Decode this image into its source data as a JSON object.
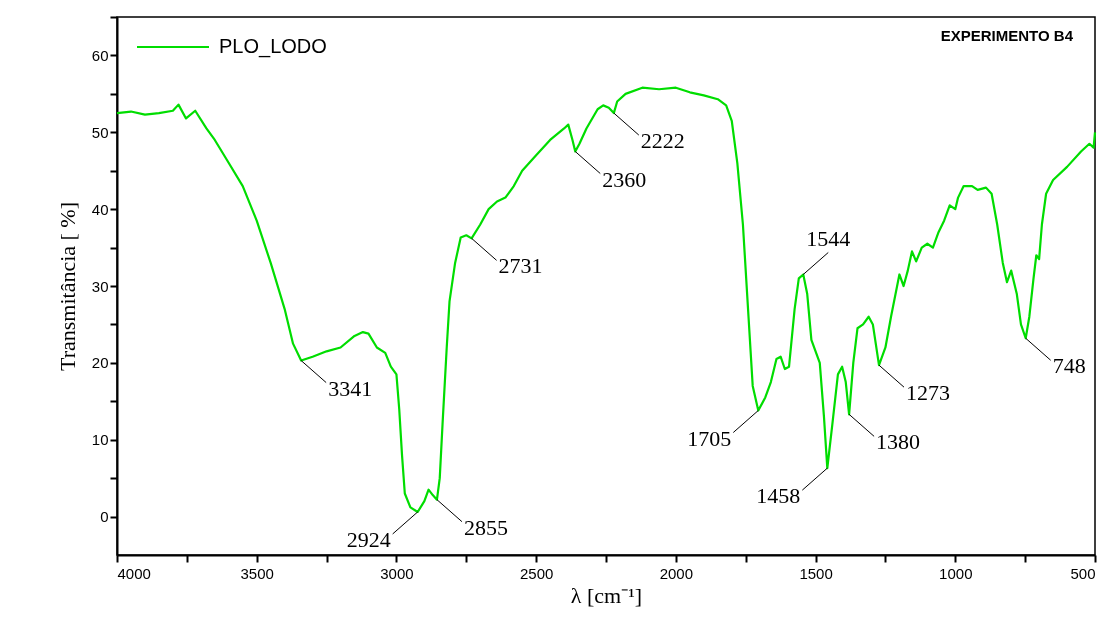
{
  "chart_data": {
    "type": "line",
    "title": "EXPERIMENTO B4",
    "xlabel": "λ [cm⁻¹]",
    "ylabel": "Transmitância [ %]",
    "xlim": [
      4000,
      500
    ],
    "ylim": [
      -5,
      65
    ],
    "xticks": [
      4000,
      {
        "value": 3750,
        "label": null
      },
      3500,
      {
        "value": 3250,
        "label": null
      },
      3000,
      {
        "value": 2750,
        "label": null
      },
      2500,
      {
        "value": 2250,
        "label": null
      },
      2000,
      {
        "value": 1750,
        "label": null
      },
      1500,
      {
        "value": 1250,
        "label": null
      },
      1000,
      {
        "value": 750,
        "label": null
      },
      500
    ],
    "yticks": [
      0,
      {
        "value": 5,
        "label": null
      },
      10,
      {
        "value": 15,
        "label": null
      },
      20,
      {
        "value": 25,
        "label": null
      },
      30,
      {
        "value": 35,
        "label": null
      },
      40,
      {
        "value": 45,
        "label": null
      },
      50,
      {
        "value": 55,
        "label": null
      },
      60,
      {
        "value": 65,
        "label": null
      }
    ],
    "grid": false,
    "legend": "top left",
    "line_style": "solid",
    "marker": "none",
    "x": [
      4000,
      3950,
      3900,
      3850,
      3800,
      3780,
      3753,
      3720,
      3680,
      3650,
      3600,
      3550,
      3500,
      3450,
      3400,
      3370,
      3341,
      3300,
      3250,
      3200,
      3150,
      3120,
      3100,
      3070,
      3040,
      3020,
      3000,
      2990,
      2980,
      2970,
      2950,
      2924,
      2900,
      2885,
      2870,
      2855,
      2845,
      2835,
      2820,
      2810,
      2790,
      2770,
      2750,
      2731,
      2700,
      2670,
      2640,
      2610,
      2580,
      2550,
      2500,
      2450,
      2400,
      2385,
      2370,
      2360,
      2345,
      2320,
      2280,
      2260,
      2240,
      2222,
      2210,
      2180,
      2120,
      2060,
      2000,
      1950,
      1900,
      1850,
      1820,
      1800,
      1780,
      1760,
      1740,
      1725,
      1705,
      1680,
      1660,
      1640,
      1625,
      1610,
      1595,
      1575,
      1560,
      1544,
      1530,
      1515,
      1500,
      1485,
      1470,
      1458,
      1440,
      1420,
      1405,
      1392,
      1380,
      1365,
      1350,
      1330,
      1310,
      1295,
      1273,
      1250,
      1230,
      1200,
      1185,
      1170,
      1155,
      1140,
      1120,
      1100,
      1080,
      1060,
      1040,
      1020,
      1000,
      990,
      970,
      940,
      920,
      890,
      870,
      850,
      830,
      815,
      800,
      780,
      765,
      748,
      735,
      720,
      710,
      700,
      690,
      675,
      650,
      600,
      550,
      520,
      505,
      500
    ],
    "series": [
      {
        "name": "PLO_LODO",
        "color": "#00dd00",
        "values": [
          52.5,
          52.7,
          52.3,
          52.5,
          52.8,
          53.6,
          51.8,
          52.8,
          50.5,
          49,
          46,
          43,
          38.5,
          33,
          27,
          22.5,
          20.3,
          20.8,
          21.5,
          22,
          23.5,
          24,
          23.8,
          22,
          21.3,
          19.5,
          18.5,
          14,
          8,
          3,
          1.2,
          0.6,
          2,
          3.5,
          2.8,
          2.2,
          5,
          12,
          22,
          28,
          33,
          36.3,
          36.6,
          36.2,
          38,
          40,
          41,
          41.5,
          43,
          45,
          47,
          49,
          50.5,
          51,
          49,
          47.5,
          48.5,
          50.5,
          53,
          53.5,
          53.2,
          52.5,
          54,
          55,
          55.8,
          55.6,
          55.8,
          55.2,
          54.8,
          54.3,
          53.5,
          51.5,
          46,
          38,
          26,
          17,
          13.8,
          15.5,
          17.5,
          20.5,
          20.8,
          19.2,
          19.5,
          27,
          31,
          31.5,
          29,
          23,
          21.5,
          20,
          13,
          6.3,
          12,
          18.5,
          19.5,
          17.5,
          13.3,
          20,
          24.5,
          25,
          26,
          25,
          19.7,
          22,
          26,
          31.5,
          30,
          32,
          34.5,
          33.2,
          35,
          35.5,
          35,
          37,
          38.5,
          40.5,
          40,
          41.5,
          43,
          43,
          42.5,
          42.8,
          42,
          38,
          33,
          30.5,
          32,
          29,
          25,
          23.2,
          26,
          31,
          34,
          33.5,
          38,
          42,
          43.8,
          45.5,
          47.5,
          48.5,
          48,
          50
        ]
      }
    ],
    "annotations": [
      {
        "text": "3341",
        "x": 3341,
        "y": 20.3
      },
      {
        "text": "2924",
        "x": 2924,
        "y": 0.6
      },
      {
        "text": "2855",
        "x": 2855,
        "y": 2.2
      },
      {
        "text": "2731",
        "x": 2731,
        "y": 36.2
      },
      {
        "text": "2360",
        "x": 2360,
        "y": 47.5
      },
      {
        "text": "2222",
        "x": 2222,
        "y": 52.5
      },
      {
        "text": "1705",
        "x": 1705,
        "y": 13.8
      },
      {
        "text": "1544",
        "x": 1544,
        "y": 31.5
      },
      {
        "text": "1458",
        "x": 1458,
        "y": 6.3
      },
      {
        "text": "1380",
        "x": 1380,
        "y": 13.3
      },
      {
        "text": "1273",
        "x": 1273,
        "y": 19.7
      },
      {
        "text": "748",
        "x": 748,
        "y": 23.2
      }
    ]
  }
}
